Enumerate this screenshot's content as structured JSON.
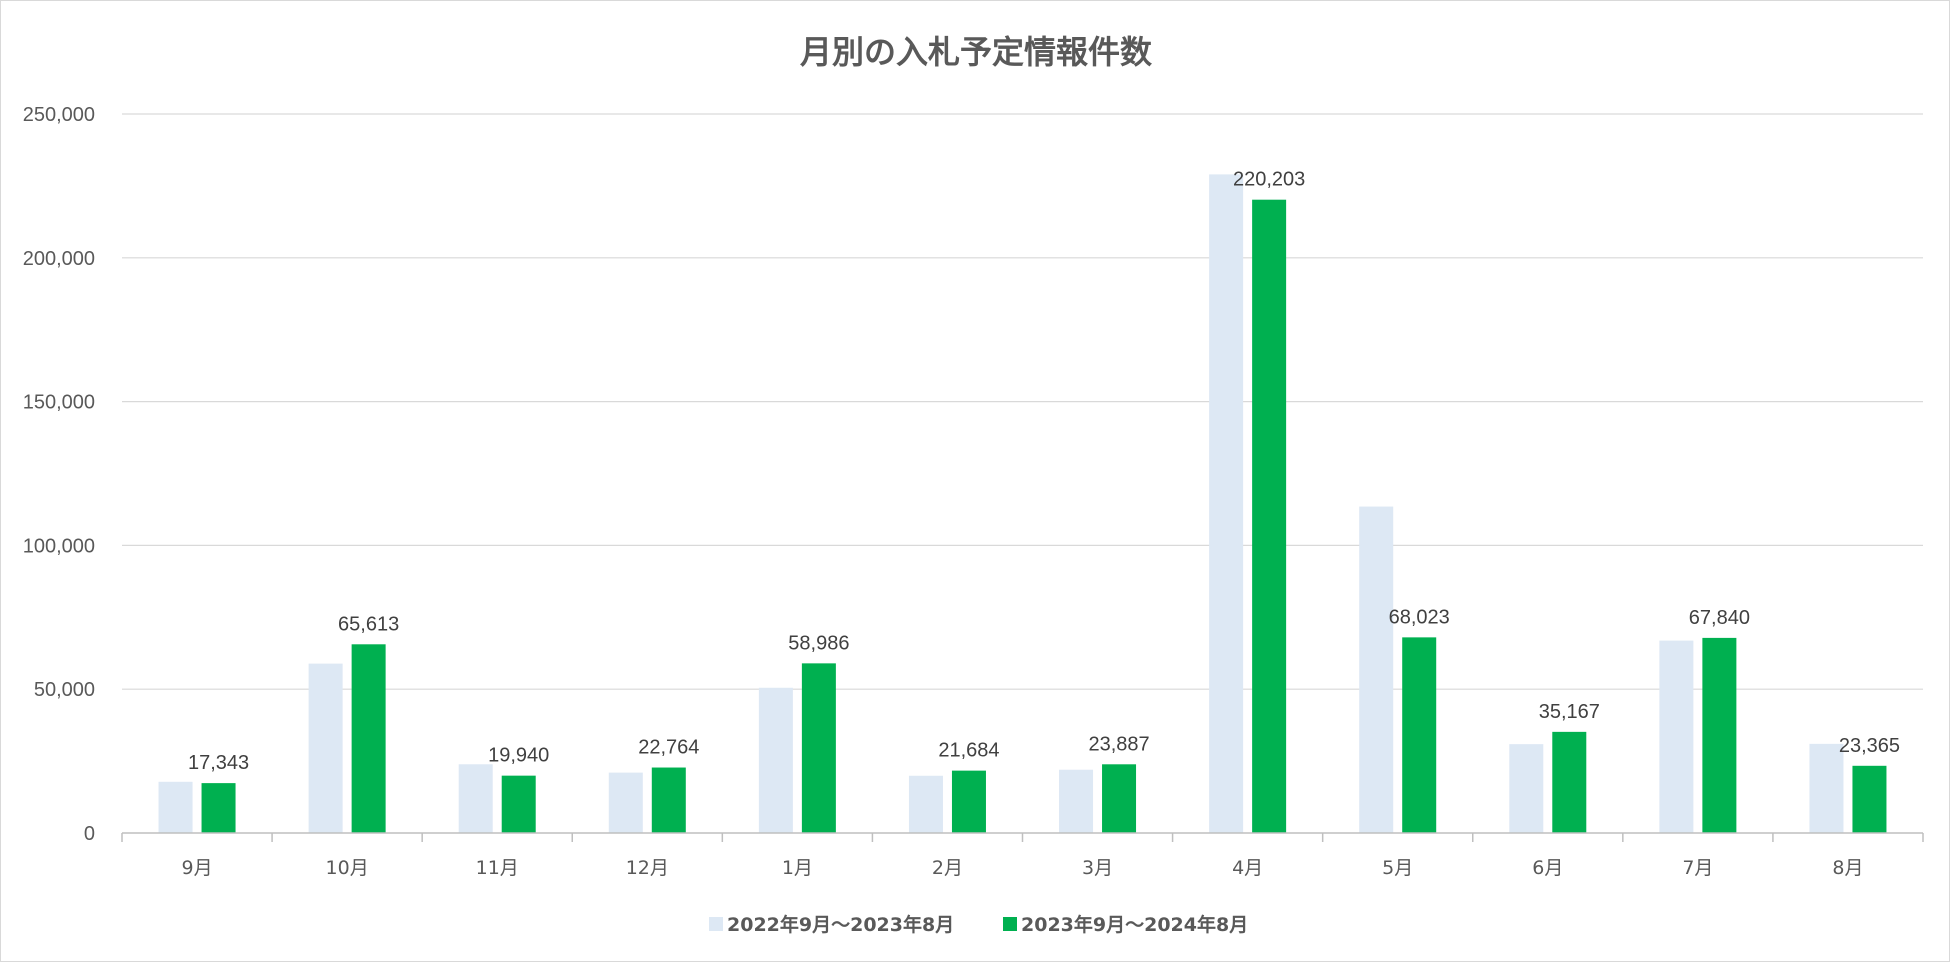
{
  "chart_data": {
    "type": "bar",
    "title": "月別の入札予定情報件数",
    "categories": [
      "9月",
      "10月",
      "11月",
      "12月",
      "1月",
      "2月",
      "3月",
      "4月",
      "5月",
      "6月",
      "7月",
      "8月"
    ],
    "series": [
      {
        "name": "2022年9月〜2023年8月",
        "color": "#dde8f4",
        "values": [
          17800,
          58900,
          23900,
          21000,
          50500,
          19900,
          22000,
          229000,
          113500,
          30900,
          66900,
          31000
        ]
      },
      {
        "name": "2023年9月〜2024年8月",
        "color": "#00b050",
        "values": [
          17343,
          65613,
          19940,
          22764,
          58986,
          21684,
          23887,
          220203,
          68023,
          35167,
          67840,
          23365
        ]
      }
    ],
    "data_labels": [
      "17,343",
      "65,613",
      "19,940",
      "22,764",
      "58,986",
      "21,684",
      "23,887",
      "220,203",
      "68,023",
      "35,167",
      "67,840",
      "23,365"
    ],
    "y_ticks": [
      "0",
      "50,000",
      "100,000",
      "150,000",
      "200,000",
      "250,000"
    ],
    "ylim": [
      0,
      250000
    ],
    "xlabel": "",
    "ylabel": "",
    "grid": true,
    "legend_position": "bottom"
  }
}
